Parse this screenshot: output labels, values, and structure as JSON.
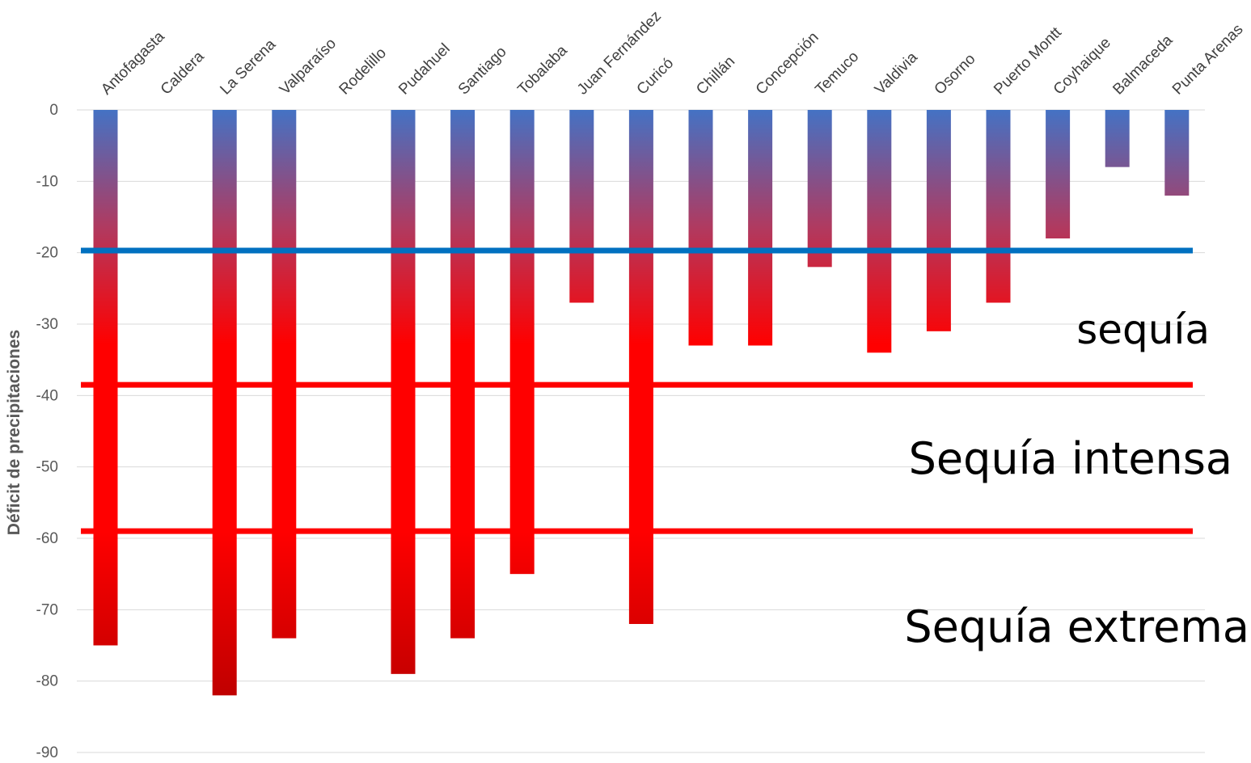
{
  "chart_data": {
    "type": "bar",
    "ylabel": "Déficit de precipitaciones",
    "ylim": [
      -90,
      0
    ],
    "ytick_step": 10,
    "grid": true,
    "categories": [
      "Antofagasta",
      "Caldera",
      "La Serena",
      "Valparaíso",
      "Rodelillo",
      "Pudahuel",
      "Santiago",
      "Tobalaba",
      "Juan Fernández",
      "Curicó",
      "Chillán",
      "Concepción",
      "Temuco",
      "Valdivia",
      "Osorno",
      "Puerto Montt",
      "Coyhaique",
      "Balmaceda",
      "Punta Arenas"
    ],
    "values": [
      -75,
      null,
      -82,
      -74,
      null,
      -79,
      -74,
      -65,
      -27,
      -72,
      -33,
      -33,
      -22,
      -34,
      -31,
      -27,
      -18,
      -8,
      -12
    ],
    "bar_gradient": {
      "top": "#4472c4",
      "bottom": "#ff0000",
      "dark": "#c00000"
    },
    "threshold_lines": [
      {
        "value": -19.7,
        "color": "#0070c0"
      },
      {
        "value": -38.5,
        "color": "#ff0000"
      },
      {
        "value": -59,
        "color": "#ff0000"
      }
    ],
    "zone_labels": [
      {
        "text": "sequía"
      },
      {
        "text": "Sequía intensa"
      },
      {
        "text": "Sequía extrema"
      }
    ]
  }
}
